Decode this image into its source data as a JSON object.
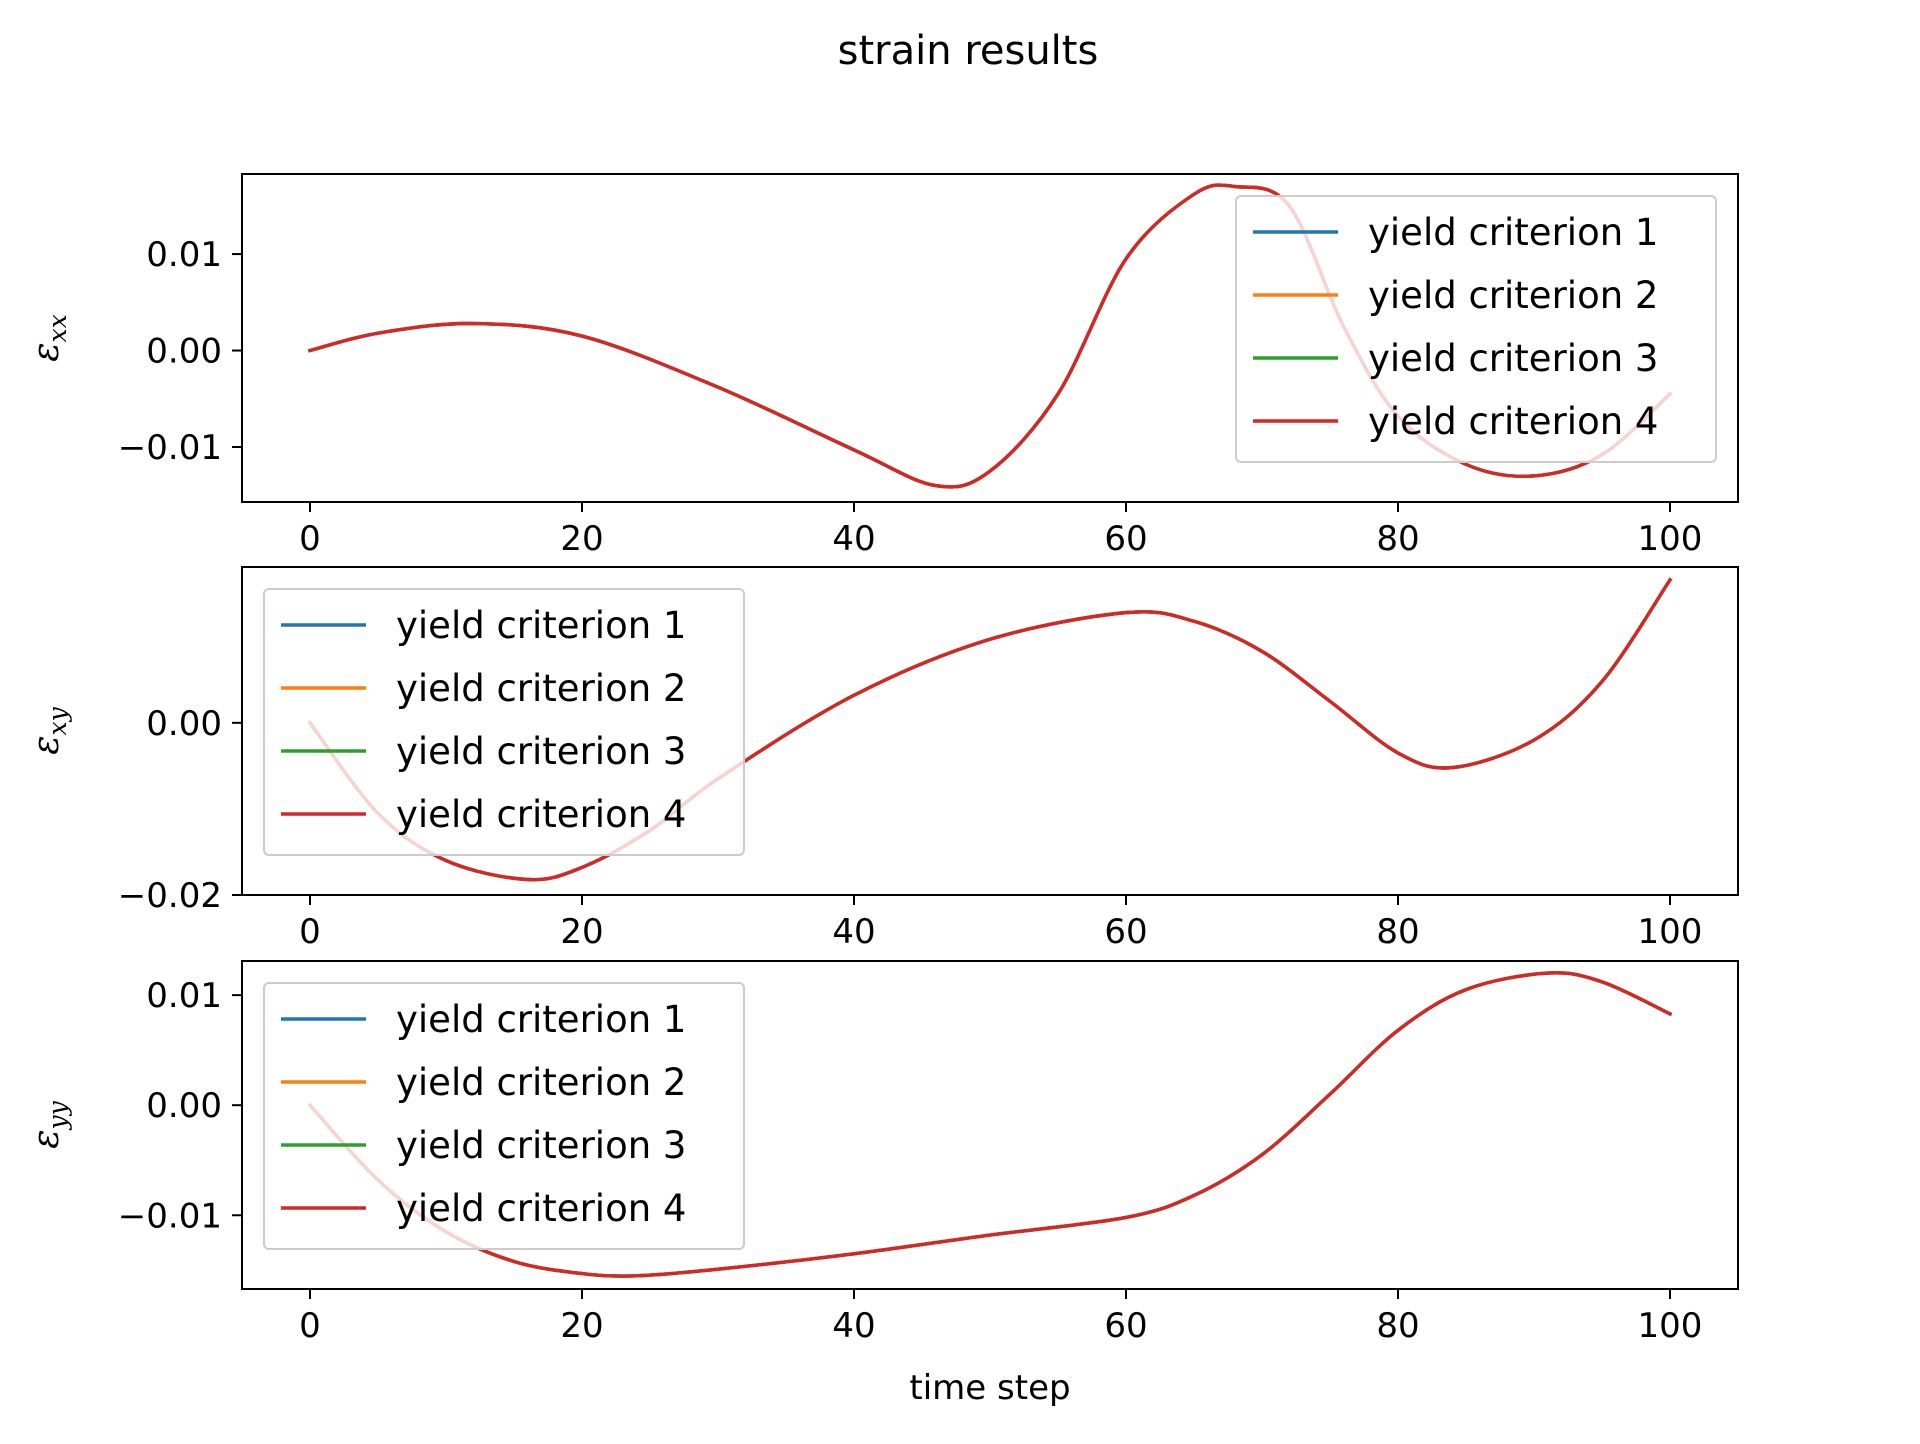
{
  "figure": {
    "title": "strain results",
    "colors": {
      "yield criterion 1": "#1f77b4",
      "yield criterion 2": "#ff7f0e",
      "yield criterion 3": "#2ca02c",
      "yield criterion 4": "#d62728"
    }
  },
  "chart_data": [
    {
      "type": "line",
      "title": "",
      "xlabel": "",
      "ylabel": {
        "symbol": "ε",
        "subscript": "xx"
      },
      "xlim": [
        -5,
        105
      ],
      "ylim": [
        -0.0157,
        0.0183
      ],
      "xticks": [
        0,
        20,
        40,
        60,
        80,
        100
      ],
      "xtick_labels": [
        "0",
        "20",
        "40",
        "60",
        "80",
        "100"
      ],
      "yticks": [
        0.01,
        0.0,
        -0.01
      ],
      "ytick_labels": [
        "0.01",
        "0.00",
        "−0.01"
      ],
      "legend_position": "upper right",
      "x": [
        0,
        5,
        12,
        20,
        30,
        40,
        46,
        50,
        55,
        60,
        65,
        68,
        72,
        76,
        80,
        85,
        90,
        95,
        100
      ],
      "series": [
        {
          "name": "yield criterion 1",
          "values": [
            0.0,
            0.0018,
            0.0028,
            0.0015,
            -0.0038,
            -0.0103,
            -0.014,
            -0.0125,
            -0.0045,
            0.0095,
            0.0162,
            0.017,
            0.015,
            0.0025,
            -0.0068,
            -0.0118,
            -0.013,
            -0.0108,
            -0.0045
          ]
        },
        {
          "name": "yield criterion 2",
          "values": [
            0.0,
            0.0018,
            0.0028,
            0.0015,
            -0.0038,
            -0.0103,
            -0.014,
            -0.0125,
            -0.0045,
            0.0095,
            0.0162,
            0.017,
            0.015,
            0.0025,
            -0.0068,
            -0.0118,
            -0.013,
            -0.0108,
            -0.0045
          ]
        },
        {
          "name": "yield criterion 3",
          "values": [
            0.0,
            0.0018,
            0.0028,
            0.0015,
            -0.0038,
            -0.0103,
            -0.014,
            -0.0125,
            -0.0045,
            0.0095,
            0.0162,
            0.017,
            0.015,
            0.0025,
            -0.0068,
            -0.0118,
            -0.013,
            -0.0108,
            -0.0045
          ]
        },
        {
          "name": "yield criterion 4",
          "values": [
            0.0,
            0.0018,
            0.0028,
            0.0015,
            -0.0038,
            -0.0103,
            -0.014,
            -0.0125,
            -0.0045,
            0.0095,
            0.0162,
            0.017,
            0.015,
            0.0025,
            -0.0068,
            -0.0118,
            -0.013,
            -0.0108,
            -0.0045
          ]
        }
      ]
    },
    {
      "type": "line",
      "title": "",
      "xlabel": "",
      "ylabel": {
        "symbol": "ε",
        "subscript": "xy"
      },
      "xlim": [
        -5,
        105
      ],
      "ylim": [
        -0.02,
        0.0181
      ],
      "xticks": [
        0,
        20,
        40,
        60,
        80,
        100
      ],
      "xtick_labels": [
        "0",
        "20",
        "40",
        "60",
        "80",
        "100"
      ],
      "yticks": [
        0.0,
        -0.02
      ],
      "ytick_labels": [
        "0.00",
        "−0.02"
      ],
      "legend_position": "upper left",
      "x": [
        0,
        5,
        10,
        16,
        20,
        25,
        30,
        40,
        50,
        60,
        65,
        70,
        75,
        80,
        84,
        90,
        95,
        100
      ],
      "series": [
        {
          "name": "yield criterion 1",
          "values": [
            0.0,
            -0.0105,
            -0.016,
            -0.0182,
            -0.0168,
            -0.0125,
            -0.0065,
            0.0032,
            0.0097,
            0.0128,
            0.0118,
            0.0083,
            0.0025,
            -0.0035,
            -0.0052,
            -0.002,
            0.0048,
            0.0166
          ]
        },
        {
          "name": "yield criterion 2",
          "values": [
            0.0,
            -0.0105,
            -0.016,
            -0.0182,
            -0.0168,
            -0.0125,
            -0.0065,
            0.0032,
            0.0097,
            0.0128,
            0.0118,
            0.0083,
            0.0025,
            -0.0035,
            -0.0052,
            -0.002,
            0.0048,
            0.0166
          ]
        },
        {
          "name": "yield criterion 3",
          "values": [
            0.0,
            -0.0105,
            -0.016,
            -0.0182,
            -0.0168,
            -0.0125,
            -0.0065,
            0.0032,
            0.0097,
            0.0128,
            0.0118,
            0.0083,
            0.0025,
            -0.0035,
            -0.0052,
            -0.002,
            0.0048,
            0.0166
          ]
        },
        {
          "name": "yield criterion 4",
          "values": [
            0.0,
            -0.0105,
            -0.016,
            -0.0182,
            -0.0168,
            -0.0125,
            -0.0065,
            0.0032,
            0.0097,
            0.0128,
            0.0118,
            0.0083,
            0.0025,
            -0.0035,
            -0.0052,
            -0.002,
            0.0048,
            0.0166
          ]
        }
      ]
    },
    {
      "type": "line",
      "title": "",
      "xlabel": "time step",
      "ylabel": {
        "symbol": "ε",
        "subscript": "yy"
      },
      "xlim": [
        -5,
        105
      ],
      "ylim": [
        -0.0167,
        0.0131
      ],
      "xticks": [
        0,
        20,
        40,
        60,
        80,
        100
      ],
      "xtick_labels": [
        "0",
        "20",
        "40",
        "60",
        "80",
        "100"
      ],
      "yticks": [
        0.01,
        0.0,
        -0.01
      ],
      "ytick_labels": [
        "0.01",
        "0.00",
        "−0.01"
      ],
      "legend_position": "upper left",
      "x": [
        0,
        5,
        10,
        15,
        20,
        24,
        30,
        40,
        50,
        60,
        65,
        70,
        75,
        80,
        85,
        91,
        95,
        100
      ],
      "series": [
        {
          "name": "yield criterion 1",
          "values": [
            0.0,
            -0.0068,
            -0.0115,
            -0.0142,
            -0.0153,
            -0.0155,
            -0.0149,
            -0.0135,
            -0.0118,
            -0.0102,
            -0.0082,
            -0.0045,
            0.001,
            0.0068,
            0.0105,
            0.012,
            0.0112,
            0.0083
          ]
        },
        {
          "name": "yield criterion 2",
          "values": [
            0.0,
            -0.0068,
            -0.0115,
            -0.0142,
            -0.0153,
            -0.0155,
            -0.0149,
            -0.0135,
            -0.0118,
            -0.0102,
            -0.0082,
            -0.0045,
            0.001,
            0.0068,
            0.0105,
            0.012,
            0.0112,
            0.0083
          ]
        },
        {
          "name": "yield criterion 3",
          "values": [
            0.0,
            -0.0068,
            -0.0115,
            -0.0142,
            -0.0153,
            -0.0155,
            -0.0149,
            -0.0135,
            -0.0118,
            -0.0102,
            -0.0082,
            -0.0045,
            0.001,
            0.0068,
            0.0105,
            0.012,
            0.0112,
            0.0083
          ]
        },
        {
          "name": "yield criterion 4",
          "values": [
            0.0,
            -0.0068,
            -0.0115,
            -0.0142,
            -0.0153,
            -0.0155,
            -0.0149,
            -0.0135,
            -0.0118,
            -0.0102,
            -0.0082,
            -0.0045,
            0.001,
            0.0068,
            0.0105,
            0.012,
            0.0112,
            0.0083
          ]
        }
      ]
    }
  ]
}
